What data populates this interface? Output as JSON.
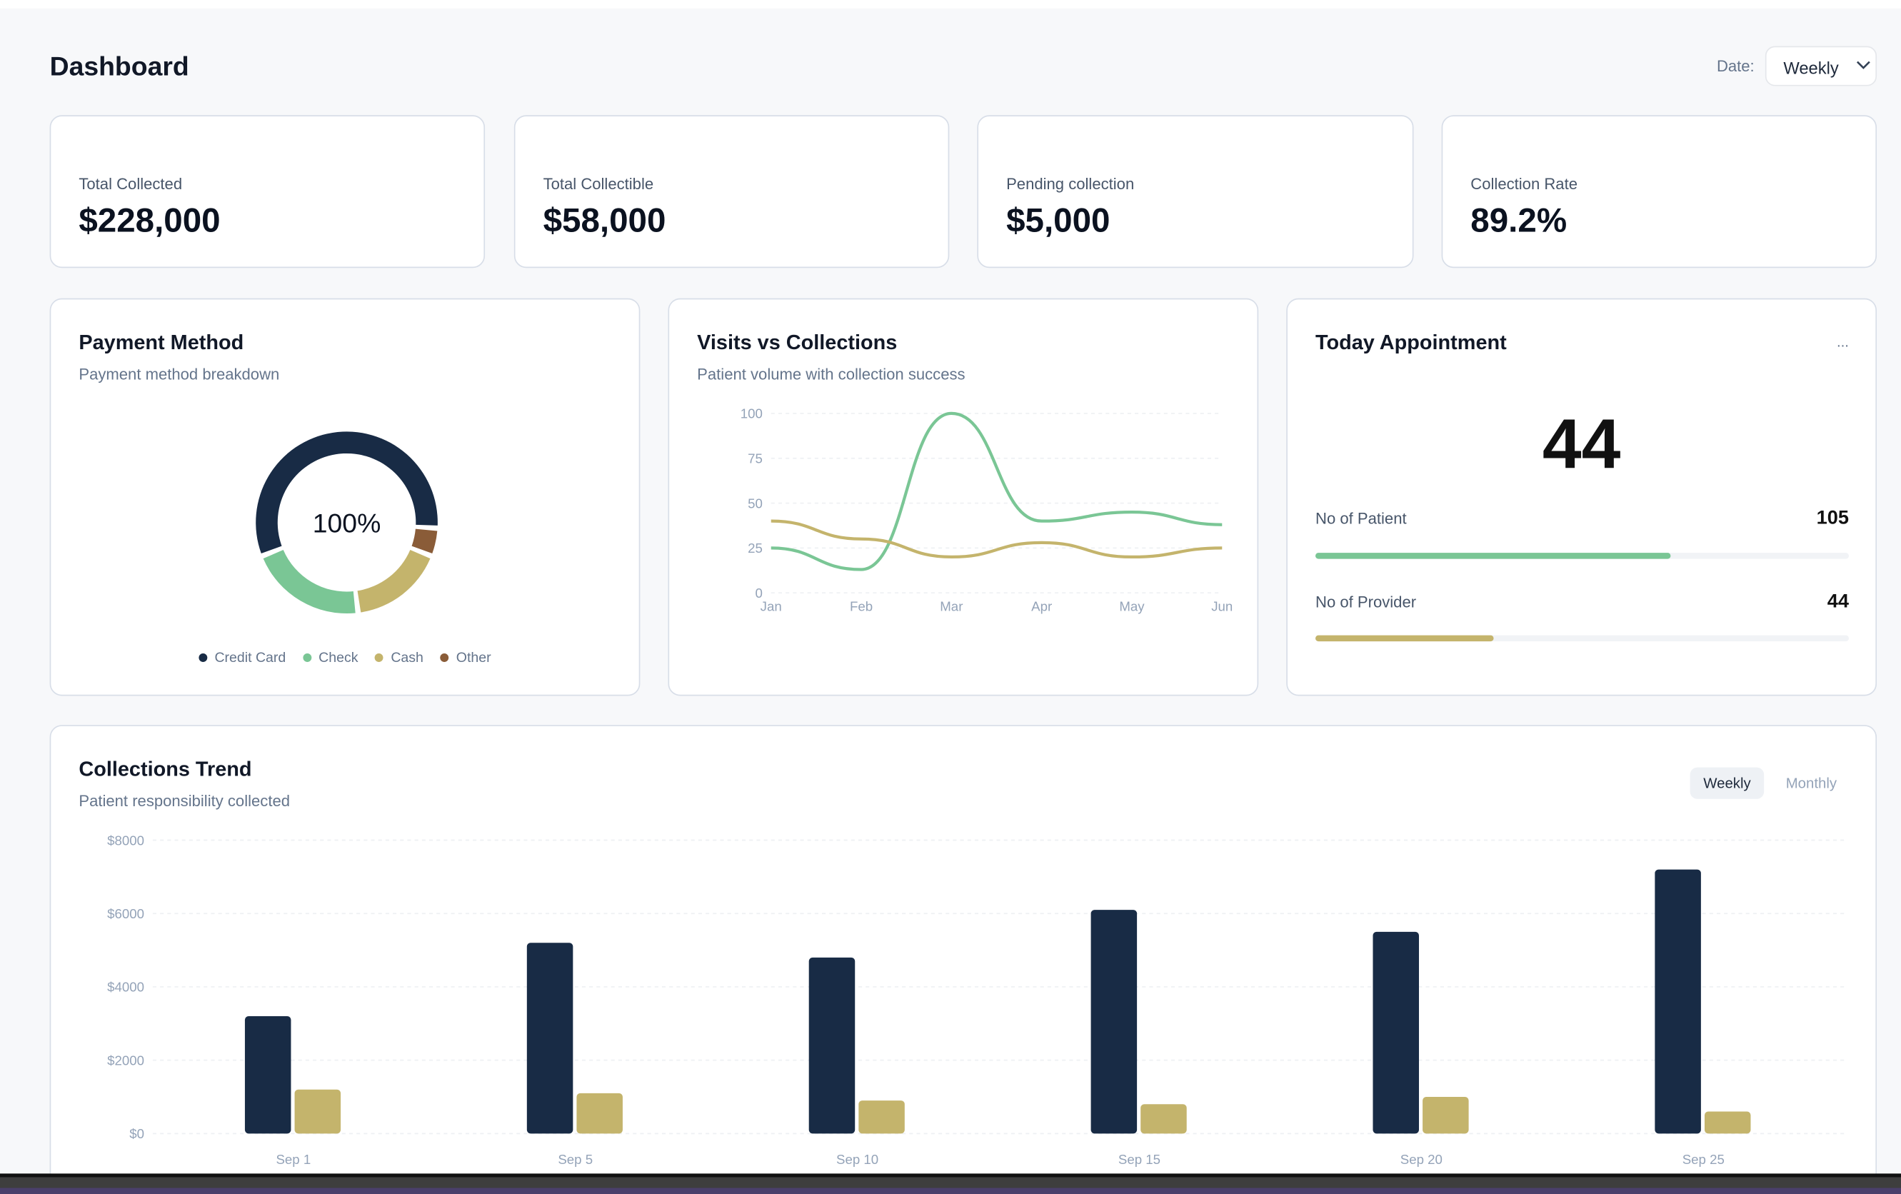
{
  "header": {
    "title": "Dashboard",
    "date_label": "Date:",
    "date_value": "Weekly"
  },
  "kpis": [
    {
      "label": "Total Collected",
      "value": "$228,000"
    },
    {
      "label": "Total Collectible",
      "value": "$58,000"
    },
    {
      "label": "Pending collection",
      "value": "$5,000"
    },
    {
      "label": "Collection Rate",
      "value": "89.2%"
    }
  ],
  "payment": {
    "title": "Payment Method",
    "subtitle": "Payment method breakdown",
    "center": "100%"
  },
  "visits": {
    "title": "Visits vs Collections",
    "subtitle": "Patient volume with collection success"
  },
  "appointment": {
    "title": "Today Appointment",
    "more": "...",
    "total": "44",
    "rows": [
      {
        "label": "No of Patient",
        "value": "105",
        "progress": 0.667,
        "color": "#7ac695"
      },
      {
        "label": "No of Provider",
        "value": "44",
        "progress": 0.333,
        "color": "#c4b46c"
      }
    ]
  },
  "trend": {
    "title": "Collections Trend",
    "subtitle": "Patient responsibility collected",
    "tabs": [
      "Weekly",
      "Monthly"
    ],
    "active_tab": "Weekly"
  },
  "chart_data": [
    {
      "type": "pie",
      "title": "",
      "categories": [
        "Credit Card",
        "Check",
        "Cash",
        "Other"
      ],
      "values": [
        57,
        21,
        17,
        5
      ],
      "colors": [
        "#182b45",
        "#7ac695",
        "#c4b46c",
        "#8a5c38"
      ],
      "legend": "bottom"
    },
    {
      "type": "line",
      "x": [
        "Jan",
        "Feb",
        "Mar",
        "Apr",
        "May",
        "Jun"
      ],
      "yticks": [
        0,
        25,
        50,
        75,
        100
      ],
      "ylim": [
        0,
        100
      ],
      "grid": true,
      "series": [
        {
          "values": [
            25,
            13,
            100,
            40,
            45,
            38
          ],
          "color": "#7ac695"
        },
        {
          "values": [
            40,
            30,
            20,
            28,
            20,
            25
          ],
          "color": "#c4b46c"
        }
      ]
    },
    {
      "type": "bar",
      "categories": [
        "Sep 1",
        "Sep 5",
        "Sep 10",
        "Sep 15",
        "Sep 20",
        "Sep 25"
      ],
      "yticks": [
        "$0",
        "$2000",
        "$4000",
        "$6000",
        "$8000"
      ],
      "ylim": [
        0,
        8000
      ],
      "grid": true,
      "series": [
        {
          "values": [
            3200,
            5200,
            4800,
            6100,
            5500,
            7200
          ],
          "color": "#182b45"
        },
        {
          "values": [
            1200,
            1100,
            900,
            800,
            1000,
            600
          ],
          "color": "#c4b46c"
        }
      ]
    }
  ]
}
